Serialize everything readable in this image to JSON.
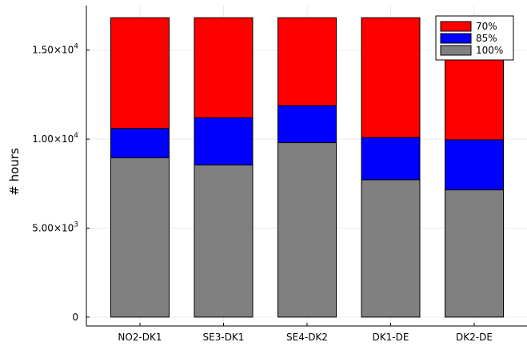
{
  "chart_data": {
    "type": "bar",
    "stacked": true,
    "categories": [
      "NO2-DK1",
      "SE3-DK1",
      "SE4-DK2",
      "DK1-DE",
      "DK2-DE"
    ],
    "series": [
      {
        "name": "100%",
        "color": "#808080",
        "values": [
          8950,
          8550,
          9800,
          7720,
          7150
        ]
      },
      {
        "name": "85%",
        "color": "#0000ff",
        "values": [
          1650,
          2650,
          2080,
          2370,
          2810
        ]
      },
      {
        "name": "70%",
        "color": "#ff0000",
        "values": [
          6220,
          5620,
          4940,
          6730,
          6860
        ]
      }
    ],
    "ylabel": "# hours",
    "ylim": [
      -500,
      17500
    ],
    "yticks": [
      {
        "value": 0,
        "mantissa": "0",
        "exponent": ""
      },
      {
        "value": 5000,
        "mantissa": "5.00×10",
        "exponent": "3"
      },
      {
        "value": 10000,
        "mantissa": "1.00×10",
        "exponent": "4"
      },
      {
        "value": 15000,
        "mantissa": "1.50×10",
        "exponent": "4"
      }
    ],
    "legend_position": "top-right",
    "legend_order": [
      "70%",
      "85%",
      "100%"
    ],
    "grid": true
  }
}
